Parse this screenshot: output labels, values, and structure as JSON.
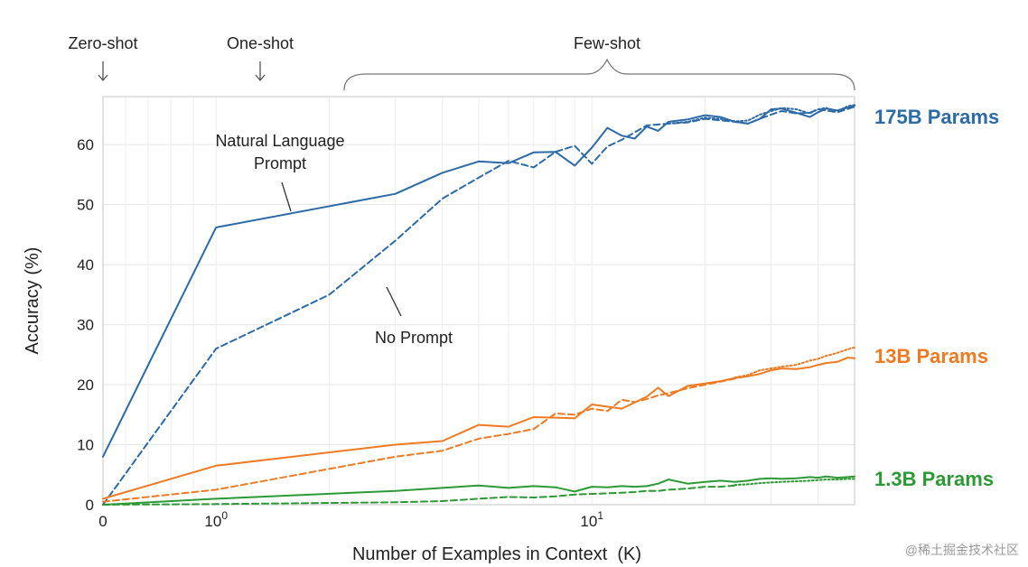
{
  "chart_data": {
    "type": "line",
    "xlabel": "Number of Examples in Context  (K)",
    "ylabel": "Accuracy (%)",
    "x_scale": "symlog",
    "xlim": [
      0,
      50
    ],
    "ylim": [
      0,
      68
    ],
    "grid": true,
    "x_ticks": [
      {
        "value": 0,
        "label": "0",
        "exp": ""
      },
      {
        "value": 1,
        "label": "10",
        "exp": "0"
      },
      {
        "value": 10,
        "label": "10",
        "exp": "1"
      }
    ],
    "y_ticks": [
      0,
      10,
      20,
      30,
      40,
      50,
      60
    ],
    "regions": {
      "zero_shot": "Zero-shot",
      "one_shot": "One-shot",
      "few_shot": "Few-shot"
    },
    "annotations": {
      "natural_language_prompt": [
        "Natural Language",
        "Prompt"
      ],
      "no_prompt": "No Prompt"
    },
    "models": [
      {
        "label": "175B Params",
        "color": "#2c6aa8"
      },
      {
        "label": "13B Params",
        "color": "#ef7a22"
      },
      {
        "label": "1.3B Params",
        "color": "#2c9a34"
      }
    ],
    "series": [
      {
        "model": 0,
        "style": "solid",
        "x": [
          0,
          1,
          3,
          4,
          5,
          6,
          7,
          8,
          9,
          10,
          11,
          12,
          13,
          14,
          15,
          16,
          18,
          20,
          22,
          24,
          26,
          28,
          30,
          32,
          35,
          38,
          40,
          42,
          45,
          48,
          50
        ],
        "y": [
          8,
          46.2,
          51.8,
          55.3,
          57.2,
          56.9,
          58.7,
          58.8,
          56.5,
          59.5,
          62.8,
          61.5,
          61.0,
          63.0,
          62.3,
          63.8,
          64.2,
          64.9,
          64.6,
          63.8,
          63.5,
          64.3,
          65.9,
          66.0,
          65.3,
          64.6,
          65.4,
          66.0,
          65.7,
          66.2,
          66.5
        ]
      },
      {
        "model": 0,
        "style": "dashed",
        "x": [
          0,
          1,
          2,
          3,
          4,
          5,
          6,
          7,
          8,
          9,
          10,
          11,
          12,
          14,
          16,
          18,
          20,
          24,
          26,
          28,
          30,
          32,
          35,
          38,
          40,
          45,
          50
        ],
        "y": [
          0,
          26,
          35,
          44,
          51,
          54.5,
          57.3,
          56.2,
          58.8,
          59.8,
          56.8,
          59.7,
          60.8,
          63.2,
          63.5,
          63.7,
          64.3,
          63.8,
          63.5,
          64.3,
          65.0,
          65.6,
          65.2,
          65.3,
          65.9,
          65.4,
          66.3
        ]
      },
      {
        "model": 0,
        "style": "dotted",
        "x": [
          16,
          18,
          20,
          22,
          24,
          26,
          28,
          30,
          32,
          35,
          38,
          40,
          42,
          45,
          48,
          50
        ],
        "y": [
          63.5,
          63.8,
          64.5,
          64.3,
          63.9,
          64.0,
          65.0,
          65.6,
          66.1,
          65.9,
          65.2,
          65.9,
          66.1,
          65.6,
          66.4,
          66.6
        ]
      },
      {
        "model": 1,
        "style": "solid",
        "x": [
          0,
          1,
          3,
          4,
          5,
          6,
          7,
          8,
          9,
          10,
          12,
          14,
          15,
          16,
          18,
          20,
          22,
          24,
          26,
          28,
          30,
          32,
          35,
          38,
          40,
          42,
          45,
          48,
          50
        ],
        "y": [
          1,
          6.5,
          10,
          10.6,
          13.3,
          13.0,
          14.6,
          14.5,
          14.4,
          16.7,
          16.0,
          18.0,
          19.5,
          18.1,
          19.8,
          20.2,
          20.6,
          21.1,
          21.4,
          21.8,
          22.4,
          22.7,
          22.6,
          22.9,
          23.3,
          23.6,
          23.8,
          24.5,
          24.4
        ]
      },
      {
        "model": 1,
        "style": "dashed",
        "x": [
          0,
          1,
          3,
          4,
          5,
          6,
          7,
          8,
          9,
          10,
          11,
          12,
          13,
          14,
          15,
          16,
          18,
          20,
          22,
          24
        ],
        "y": [
          0.5,
          2.5,
          8.0,
          9.0,
          11.0,
          11.8,
          12.6,
          15.2,
          15.0,
          16.0,
          15.6,
          17.5,
          17.1,
          17.6,
          18.2,
          18.6,
          19.4,
          20.0,
          20.5,
          21.0
        ]
      },
      {
        "model": 1,
        "style": "dotted",
        "x": [
          24,
          26,
          28,
          30,
          32,
          35,
          38,
          40,
          42,
          45,
          48,
          50
        ],
        "y": [
          21.2,
          21.6,
          22.4,
          22.7,
          23.0,
          23.3,
          24.0,
          24.3,
          24.8,
          25.3,
          25.9,
          26.2
        ]
      },
      {
        "model": 2,
        "style": "solid",
        "x": [
          0,
          1,
          3,
          5,
          6,
          7,
          8,
          9,
          10,
          11,
          12,
          13,
          14,
          15,
          16,
          18,
          20,
          22,
          24,
          26,
          28,
          30,
          32,
          35,
          38,
          40,
          42,
          45,
          48,
          50
        ],
        "y": [
          0,
          1.0,
          2.3,
          3.2,
          2.8,
          3.1,
          2.9,
          2.2,
          3.0,
          2.9,
          3.1,
          3.0,
          3.1,
          3.5,
          4.2,
          3.5,
          3.8,
          4.0,
          3.8,
          4.0,
          4.3,
          4.4,
          4.3,
          4.4,
          4.6,
          4.5,
          4.7,
          4.5,
          4.6,
          4.7
        ]
      },
      {
        "model": 2,
        "style": "dashed",
        "x": [
          0,
          1,
          3,
          4,
          5,
          6,
          7,
          8,
          9,
          10,
          11,
          12,
          13,
          14,
          15,
          16,
          18,
          20,
          22,
          24
        ],
        "y": [
          0,
          0.1,
          0.4,
          0.6,
          1.0,
          1.3,
          1.2,
          1.4,
          1.7,
          1.8,
          1.9,
          2.0,
          2.1,
          2.3,
          2.3,
          2.5,
          2.7,
          3.0,
          3.0,
          3.2
        ]
      },
      {
        "model": 2,
        "style": "dotted",
        "x": [
          24,
          26,
          28,
          30,
          32,
          35,
          38,
          40,
          42,
          45,
          48,
          50
        ],
        "y": [
          3.3,
          3.4,
          3.6,
          3.7,
          3.8,
          3.9,
          4.0,
          4.1,
          4.2,
          4.2,
          4.3,
          4.3
        ]
      }
    ]
  },
  "watermark": "@稀土掘金技术社区"
}
